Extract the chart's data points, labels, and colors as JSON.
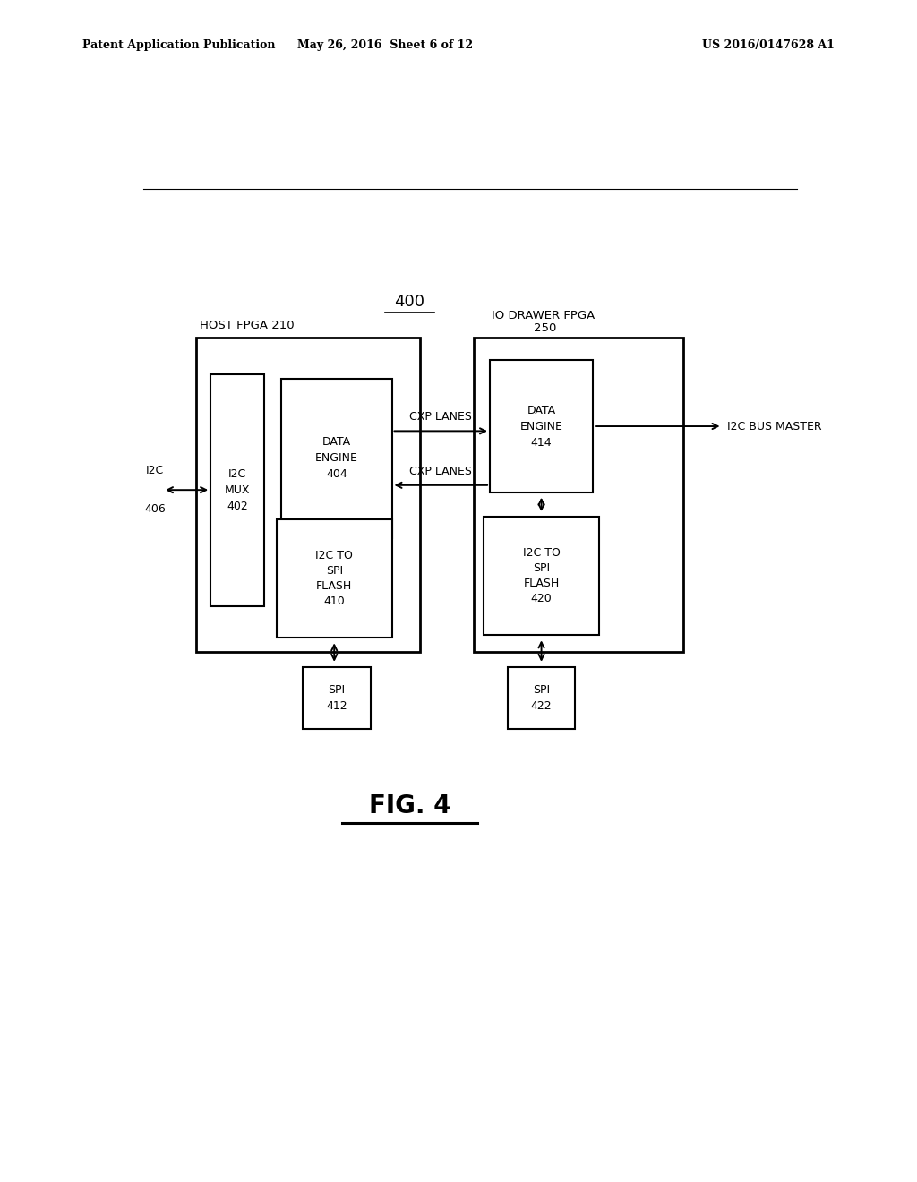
{
  "bg_color": "#ffffff",
  "header_left": "Patent Application Publication",
  "header_mid": "May 26, 2016  Sheet 6 of 12",
  "header_right": "US 2016/0147628 A1",
  "fig_label": "FIG. 4",
  "diagram_label": "400",
  "host_fpga_label": "HOST FPGA 210",
  "io_drawer_label_line1": "IO DRAWER FPGA",
  "io_drawer_label_line2": "250",
  "font_size_header": 9,
  "font_size_box": 9,
  "font_size_fig": 20
}
